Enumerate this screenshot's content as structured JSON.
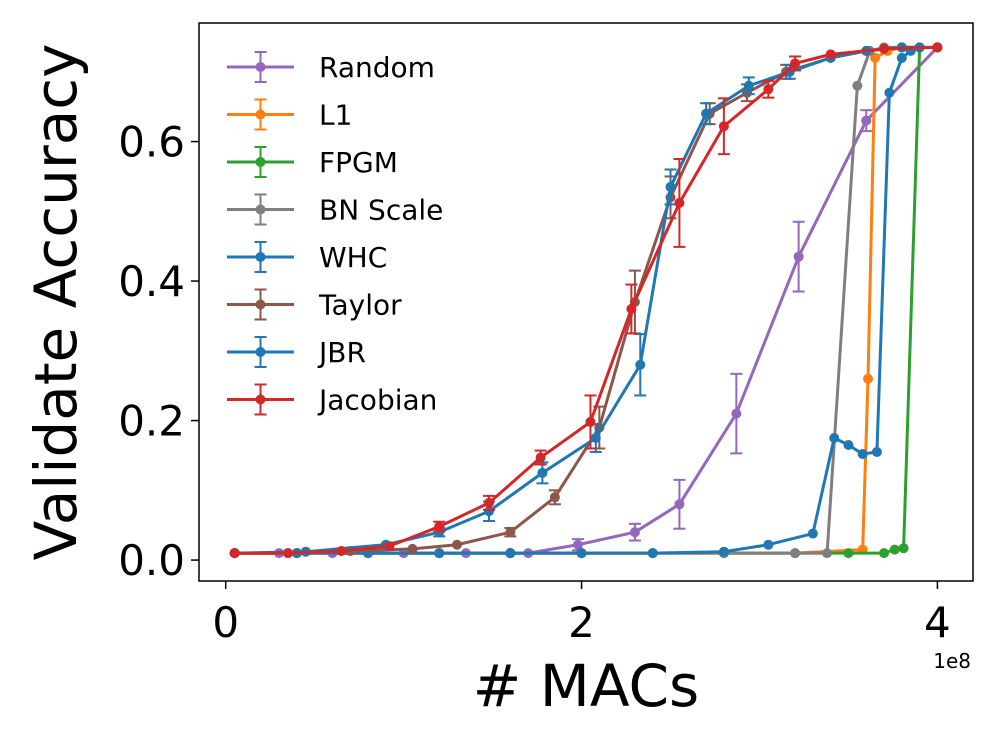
{
  "chart_data": {
    "type": "line",
    "title": "",
    "xlabel": "# MACs",
    "ylabel": "Validate Accuracy",
    "x_offset_label": "1e8",
    "xlim": [
      -0.15,
      4.2
    ],
    "ylim": [
      -0.03,
      0.77
    ],
    "xticks": [
      0,
      2,
      4
    ],
    "xtick_labels": [
      "0",
      "2",
      "4"
    ],
    "yticks": [
      0.0,
      0.2,
      0.4,
      0.6
    ],
    "ytick_labels": [
      "0.0",
      "0.2",
      "0.4",
      "0.6"
    ],
    "legend_position": "upper-left",
    "series": [
      {
        "name": "Random",
        "color": "#9467bd",
        "x": [
          0.05,
          0.3,
          0.6,
          1.0,
          1.35,
          1.7,
          1.98,
          2.3,
          2.55,
          2.87,
          3.22,
          3.6,
          4.0
        ],
        "y": [
          0.01,
          0.01,
          0.01,
          0.01,
          0.01,
          0.01,
          0.022,
          0.04,
          0.08,
          0.21,
          0.435,
          0.63,
          0.735
        ],
        "err": [
          0,
          0,
          0,
          0,
          0,
          0,
          0.008,
          0.012,
          0.035,
          0.057,
          0.05,
          0.015,
          0
        ]
      },
      {
        "name": "L1",
        "color": "#ff7f0e",
        "x": [
          0.05,
          0.4,
          0.8,
          1.2,
          1.6,
          2.0,
          2.4,
          2.8,
          3.2,
          3.58,
          3.61,
          3.65,
          3.72,
          3.8,
          3.9
        ],
        "y": [
          0.01,
          0.01,
          0.01,
          0.01,
          0.01,
          0.01,
          0.01,
          0.01,
          0.01,
          0.015,
          0.26,
          0.72,
          0.73,
          0.735,
          0.735
        ],
        "err": [
          0,
          0,
          0,
          0,
          0,
          0,
          0,
          0,
          0,
          0,
          0,
          0,
          0,
          0,
          0
        ]
      },
      {
        "name": "FPGM",
        "color": "#2ca02c",
        "x": [
          0.05,
          0.4,
          0.8,
          1.2,
          1.6,
          2.0,
          2.4,
          2.8,
          3.2,
          3.5,
          3.7,
          3.76,
          3.81,
          3.9
        ],
        "y": [
          0.01,
          0.01,
          0.01,
          0.01,
          0.01,
          0.01,
          0.01,
          0.01,
          0.01,
          0.01,
          0.01,
          0.015,
          0.017,
          0.735
        ],
        "err": [
          0,
          0,
          0,
          0,
          0,
          0,
          0,
          0,
          0,
          0,
          0,
          0,
          0,
          0
        ]
      },
      {
        "name": "BN Scale",
        "color": "#7f7f7f",
        "x": [
          0.05,
          0.4,
          0.8,
          1.2,
          1.6,
          2.0,
          2.4,
          2.8,
          3.2,
          3.38,
          3.55,
          3.62,
          3.7,
          3.8
        ],
        "y": [
          0.01,
          0.01,
          0.01,
          0.01,
          0.01,
          0.01,
          0.01,
          0.01,
          0.01,
          0.01,
          0.68,
          0.73,
          0.735,
          0.735
        ],
        "err": [
          0,
          0,
          0,
          0,
          0,
          0,
          0,
          0,
          0,
          0,
          0,
          0,
          0,
          0
        ]
      },
      {
        "name": "WHC",
        "color": "#1f77b4",
        "x": [
          0.05,
          0.4,
          0.8,
          1.2,
          1.6,
          2.0,
          2.4,
          2.8,
          3.05,
          3.3,
          3.42,
          3.5,
          3.58,
          3.66,
          3.73,
          3.8,
          3.85,
          3.9
        ],
        "y": [
          0.01,
          0.01,
          0.01,
          0.01,
          0.01,
          0.01,
          0.01,
          0.012,
          0.022,
          0.038,
          0.175,
          0.165,
          0.152,
          0.155,
          0.67,
          0.72,
          0.73,
          0.735
        ],
        "err": [
          0,
          0,
          0,
          0,
          0,
          0,
          0,
          0,
          0,
          0,
          0,
          0,
          0,
          0,
          0,
          0,
          0,
          0
        ]
      },
      {
        "name": "Taylor",
        "color": "#8c564b",
        "x": [
          0.05,
          0.35,
          0.7,
          1.05,
          1.3,
          1.6,
          1.85,
          2.1,
          2.3,
          2.5,
          2.72,
          2.93,
          3.15,
          3.4,
          3.6,
          3.8,
          4.0
        ],
        "y": [
          0.01,
          0.01,
          0.013,
          0.016,
          0.022,
          0.04,
          0.09,
          0.19,
          0.37,
          0.52,
          0.64,
          0.67,
          0.7,
          0.72,
          0.73,
          0.735,
          0.735
        ],
        "err": [
          0,
          0,
          0,
          0,
          0,
          0.006,
          0.01,
          0.03,
          0.045,
          0.03,
          0.015,
          0.012,
          0.01,
          0,
          0,
          0,
          0
        ]
      },
      {
        "name": "JBR",
        "color": "#1f77b4",
        "x": [
          0.05,
          0.45,
          0.9,
          1.2,
          1.48,
          1.78,
          2.08,
          2.33,
          2.5,
          2.7,
          2.94,
          3.17,
          3.4,
          3.6,
          3.8,
          4.0
        ],
        "y": [
          0.01,
          0.012,
          0.022,
          0.04,
          0.07,
          0.125,
          0.175,
          0.28,
          0.535,
          0.64,
          0.68,
          0.7,
          0.72,
          0.73,
          0.735,
          0.735
        ],
        "err": [
          0,
          0,
          0,
          0.006,
          0.014,
          0.015,
          0.02,
          0.044,
          0.025,
          0.015,
          0.012,
          0.01,
          0,
          0,
          0,
          0
        ]
      },
      {
        "name": "Jacobian",
        "color": "#d62728",
        "x": [
          0.05,
          0.35,
          0.65,
          0.92,
          1.2,
          1.48,
          1.77,
          2.05,
          2.28,
          2.55,
          2.8,
          3.05,
          3.2,
          3.4,
          3.7,
          4.0
        ],
        "y": [
          0.01,
          0.01,
          0.013,
          0.02,
          0.048,
          0.082,
          0.147,
          0.198,
          0.36,
          0.512,
          0.622,
          0.675,
          0.712,
          0.725,
          0.733,
          0.735
        ],
        "err": [
          0,
          0,
          0,
          0,
          0.007,
          0.01,
          0.01,
          0.038,
          0.035,
          0.063,
          0.04,
          0.012,
          0.01,
          0,
          0,
          0
        ]
      }
    ]
  }
}
